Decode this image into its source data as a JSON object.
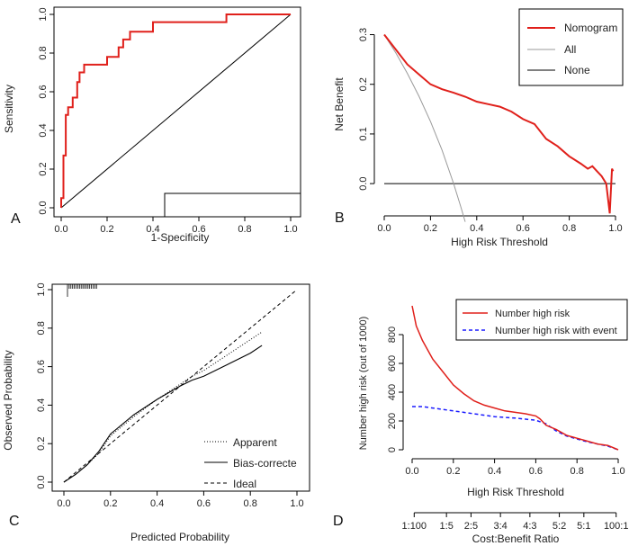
{
  "panels": [
    {
      "id": "A",
      "label": "A",
      "type": "roc",
      "xlabel": "1-Specificity",
      "ylabel": "Sensitivity",
      "xlim": [
        0,
        1
      ],
      "ylim": [
        0,
        1
      ],
      "xticks": [
        "0.0",
        "0.2",
        "0.4",
        "0.6",
        "0.8",
        "1.0"
      ],
      "yticks": [
        "0.0",
        "0.2",
        "0.4",
        "0.6",
        "0.8",
        "1.0"
      ],
      "colors": {
        "curve": "#e0201b",
        "reference": "#000000"
      }
    },
    {
      "id": "B",
      "label": "B",
      "type": "decision_curve",
      "xlabel": "High Risk Threshold",
      "ylabel": "Net Benefit",
      "xlim": [
        0,
        1
      ],
      "ylim": [
        -0.065,
        0.31
      ],
      "xticks": [
        "0.0",
        "0.2",
        "0.4",
        "0.6",
        "0.8",
        "1.0"
      ],
      "yticks": [
        "0.0",
        "0.1",
        "0.2",
        "0.3"
      ],
      "legend": [
        "Nomogram",
        "All",
        "None"
      ],
      "colors": {
        "nomogram": "#e0201b",
        "all": "#9a9a9a",
        "none": "#000000"
      }
    },
    {
      "id": "C",
      "label": "C",
      "type": "calibration",
      "xlabel": "Predicted Probability",
      "ylabel": "Observed Probability",
      "xlim": [
        0,
        1
      ],
      "ylim": [
        0,
        1
      ],
      "xticks": [
        "0.0",
        "0.2",
        "0.4",
        "0.6",
        "0.8",
        "1.0"
      ],
      "yticks": [
        "0.0",
        "0.2",
        "0.4",
        "0.6",
        "0.8",
        "1.0"
      ],
      "legend": [
        "Apparent",
        "Bias-correcte",
        "Ideal"
      ],
      "colors": {
        "line": "#000000"
      }
    },
    {
      "id": "D",
      "label": "D",
      "type": "clinical_impact",
      "xlabel": "High Risk Threshold",
      "ylabel": "Number high risk (out of 1000)",
      "xlabel2": "Cost:Benefit Ratio",
      "xlim": [
        0,
        1
      ],
      "ylim": [
        0,
        1000
      ],
      "xticks": [
        "0.0",
        "0.2",
        "0.4",
        "0.6",
        "0.8",
        "1.0"
      ],
      "yticks": [
        "0",
        "200",
        "400",
        "600",
        "800"
      ],
      "cost_ticks": [
        "1:100",
        "1:5",
        "2:5",
        "3:4",
        "4:3",
        "5:2",
        "5:1",
        "100:1"
      ],
      "legend": [
        "Number high risk",
        "Number high risk with event"
      ],
      "colors": {
        "high_risk": "#e0201b",
        "with_event": "#1a1aff"
      }
    }
  ],
  "chart_data": [
    {
      "type": "line",
      "panel": "A",
      "title": "",
      "series": [
        {
          "name": "ROC",
          "x": [
            0,
            0,
            0.01,
            0.01,
            0.02,
            0.02,
            0.03,
            0.03,
            0.05,
            0.05,
            0.07,
            0.07,
            0.08,
            0.08,
            0.1,
            0.1,
            0.2,
            0.2,
            0.25,
            0.25,
            0.27,
            0.27,
            0.3,
            0.3,
            0.4,
            0.4,
            0.45,
            0.45,
            0.72,
            0.72,
            1.0
          ],
          "y": [
            0,
            0.05,
            0.05,
            0.27,
            0.27,
            0.48,
            0.48,
            0.52,
            0.52,
            0.57,
            0.57,
            0.65,
            0.65,
            0.7,
            0.7,
            0.74,
            0.74,
            0.78,
            0.78,
            0.83,
            0.83,
            0.87,
            0.87,
            0.91,
            0.91,
            0.96,
            0.96,
            0.96,
            0.96,
            1.0,
            1.0
          ]
        },
        {
          "name": "Reference",
          "x": [
            0,
            1
          ],
          "y": [
            0,
            1
          ]
        }
      ],
      "xlabel": "1-Specificity",
      "ylabel": "Sensitivity",
      "xlim": [
        0,
        1
      ],
      "ylim": [
        0,
        1
      ]
    },
    {
      "type": "line",
      "panel": "B",
      "title": "",
      "series": [
        {
          "name": "Nomogram",
          "x": [
            0,
            0.05,
            0.1,
            0.15,
            0.2,
            0.25,
            0.3,
            0.35,
            0.4,
            0.45,
            0.5,
            0.55,
            0.6,
            0.65,
            0.7,
            0.75,
            0.8,
            0.85,
            0.88,
            0.9,
            0.92,
            0.94,
            0.96,
            0.975,
            0.985,
            0.99
          ],
          "y": [
            0.3,
            0.27,
            0.24,
            0.22,
            0.2,
            0.19,
            0.183,
            0.175,
            0.165,
            0.16,
            0.155,
            0.145,
            0.13,
            0.12,
            0.09,
            0.075,
            0.055,
            0.04,
            0.03,
            0.035,
            0.025,
            0.015,
            0.0,
            -0.06,
            0.03,
            0.025
          ]
        },
        {
          "name": "All",
          "x": [
            0,
            0.05,
            0.1,
            0.15,
            0.2,
            0.25,
            0.3,
            0.33,
            0.35
          ],
          "y": [
            0.3,
            0.263,
            0.222,
            0.176,
            0.125,
            0.067,
            0.0,
            -0.045,
            -0.077
          ]
        },
        {
          "name": "None",
          "x": [
            0,
            1
          ],
          "y": [
            0,
            0
          ]
        }
      ],
      "xlabel": "High Risk Threshold",
      "ylabel": "Net Benefit",
      "xlim": [
        0,
        1
      ],
      "ylim": [
        -0.065,
        0.31
      ]
    },
    {
      "type": "line",
      "panel": "C",
      "title": "",
      "series": [
        {
          "name": "Apparent",
          "x": [
            0,
            0.05,
            0.1,
            0.15,
            0.2,
            0.3,
            0.4,
            0.5,
            0.55,
            0.6,
            0.7,
            0.8,
            0.85
          ],
          "y": [
            0,
            0.04,
            0.09,
            0.15,
            0.24,
            0.34,
            0.43,
            0.51,
            0.55,
            0.58,
            0.66,
            0.74,
            0.78
          ]
        },
        {
          "name": "Bias-correcte",
          "x": [
            0,
            0.05,
            0.1,
            0.15,
            0.2,
            0.3,
            0.4,
            0.5,
            0.55,
            0.6,
            0.7,
            0.8,
            0.85
          ],
          "y": [
            0,
            0.04,
            0.09,
            0.16,
            0.25,
            0.35,
            0.43,
            0.5,
            0.53,
            0.55,
            0.61,
            0.67,
            0.71
          ]
        },
        {
          "name": "Ideal",
          "x": [
            0,
            1
          ],
          "y": [
            0,
            1
          ]
        }
      ],
      "xlabel": "Predicted Probability",
      "ylabel": "Observed Probability",
      "xlim": [
        0,
        1
      ],
      "ylim": [
        0,
        1
      ]
    },
    {
      "type": "line",
      "panel": "D",
      "title": "",
      "series": [
        {
          "name": "Number high risk",
          "x": [
            0,
            0.02,
            0.05,
            0.1,
            0.15,
            0.2,
            0.25,
            0.3,
            0.35,
            0.4,
            0.45,
            0.5,
            0.55,
            0.6,
            0.62,
            0.65,
            0.7,
            0.75,
            0.8,
            0.85,
            0.9,
            0.95,
            1.0
          ],
          "y": [
            1000,
            860,
            760,
            630,
            540,
            450,
            390,
            340,
            310,
            290,
            270,
            260,
            250,
            235,
            215,
            170,
            140,
            100,
            80,
            60,
            40,
            30,
            0
          ]
        },
        {
          "name": "Number high risk with event",
          "x": [
            0,
            0.05,
            0.1,
            0.2,
            0.3,
            0.4,
            0.5,
            0.6,
            0.65,
            0.7,
            0.75,
            0.8,
            0.85,
            0.9,
            0.95,
            1.0
          ],
          "y": [
            300,
            300,
            290,
            270,
            250,
            230,
            220,
            205,
            180,
            130,
            95,
            75,
            55,
            40,
            25,
            0
          ]
        }
      ],
      "xlabel": "High Risk Threshold",
      "ylabel": "Number high risk (out of 1000)",
      "xlim": [
        0,
        1
      ],
      "ylim": [
        0,
        1000
      ]
    }
  ]
}
